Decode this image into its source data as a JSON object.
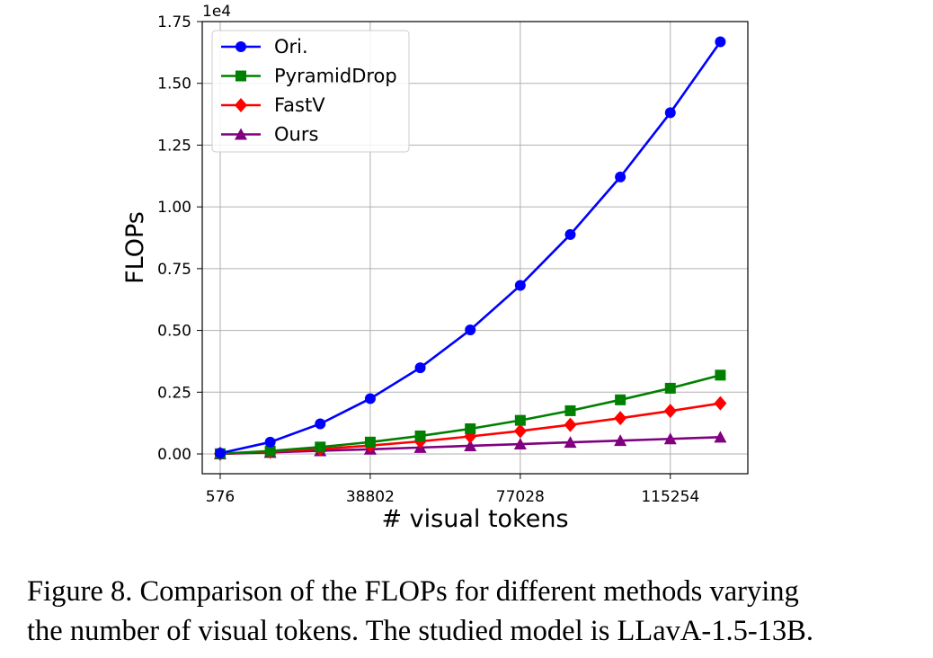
{
  "chart_data": {
    "type": "line",
    "title": "",
    "xlabel": "# visual tokens",
    "ylabel": "FLOPs",
    "y_offset_label": "1e4",
    "x_ticks": [
      576,
      38802,
      77028,
      115254
    ],
    "x_tick_labels": [
      "576",
      "38802",
      "77028",
      "115254"
    ],
    "y_ticks": [
      0,
      0.25,
      0.5,
      0.75,
      1.0,
      1.25,
      1.5,
      1.75
    ],
    "y_tick_labels": [
      "0.00",
      "0.25",
      "0.50",
      "0.75",
      "1.00",
      "1.25",
      "1.50",
      "1.75"
    ],
    "xlim": [
      -4000,
      135000
    ],
    "ylim": [
      -0.08,
      1.75
    ],
    "grid": true,
    "legend_position": "top-left",
    "x": [
      576,
      13318,
      26060,
      38802,
      51544,
      64286,
      77028,
      89770,
      102512,
      115254,
      127996
    ],
    "series": [
      {
        "name": "Ori.",
        "color": "#0000ff",
        "marker": "circle",
        "values": [
          0.003,
          0.048,
          0.122,
          0.224,
          0.349,
          0.502,
          0.682,
          0.888,
          1.121,
          1.381,
          1.668
        ]
      },
      {
        "name": "PyramidDrop",
        "color": "#008000",
        "marker": "square",
        "values": [
          0.001,
          0.012,
          0.028,
          0.048,
          0.073,
          0.102,
          0.136,
          0.175,
          0.219,
          0.266,
          0.319
        ]
      },
      {
        "name": "FastV",
        "color": "#ff0000",
        "marker": "diamond",
        "values": [
          0.001,
          0.009,
          0.02,
          0.034,
          0.051,
          0.071,
          0.093,
          0.118,
          0.145,
          0.174,
          0.205
        ]
      },
      {
        "name": "Ours",
        "color": "#800080",
        "marker": "triangle",
        "values": [
          0.0,
          0.006,
          0.013,
          0.019,
          0.026,
          0.033,
          0.04,
          0.047,
          0.054,
          0.061,
          0.068
        ]
      }
    ]
  },
  "caption": {
    "line1": "Figure 8. Comparison of the FLOPs for different methods varying",
    "line2": "the number of visual tokens. The studied model is LLavA-1.5-13B."
  }
}
